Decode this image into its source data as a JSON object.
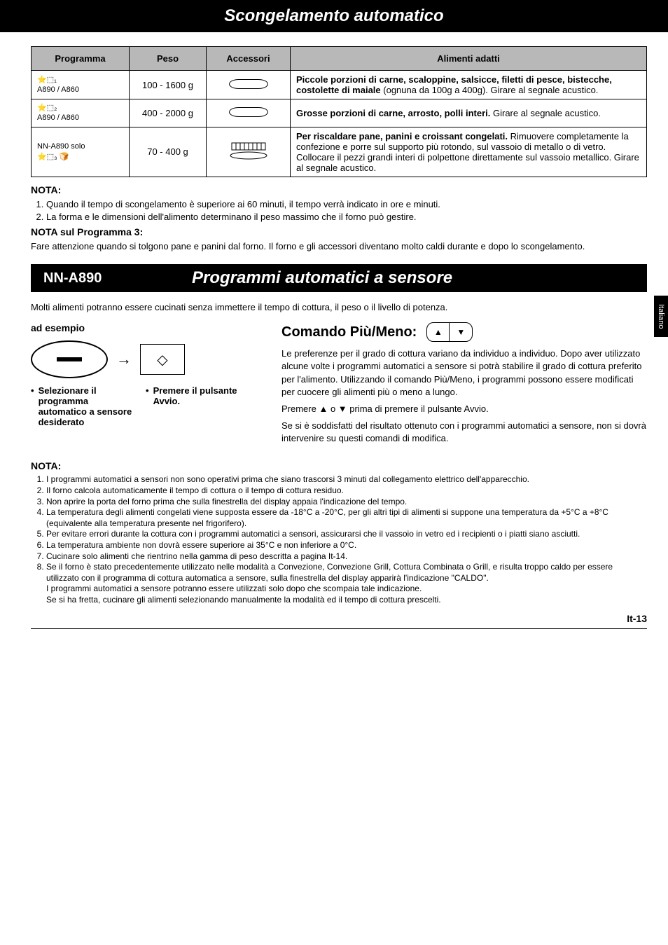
{
  "header_title": "Scongelamento automatico",
  "side_tab": "Italiano",
  "table": {
    "headers": [
      "Programma",
      "Peso",
      "Accessori",
      "Alimenti adatti"
    ],
    "rows": [
      {
        "prog_code": "⭐⬚₁",
        "prog_models": "A890 / A860",
        "peso": "100 - 1600 g",
        "alim_bold": "Piccole porzioni di carne, scaloppine, salsicce, filetti di pesce, bistecche, costolette di maiale",
        "alim_rest": " (ognuna da 100g a 400g). Girare al segnale acustico."
      },
      {
        "prog_code": "⭐⬚₂",
        "prog_models": "A890 / A860",
        "peso": "400 - 2000 g",
        "alim_bold": "Grosse porzioni di carne, arrosto, polli interi.",
        "alim_rest": " Girare al segnale acustico."
      },
      {
        "prog_code": "NN-A890 solo",
        "prog_models": "⭐⬚₃  🍞",
        "peso": "70 - 400 g",
        "alim_bold": "Per riscaldare pane, panini e croissant congelati.",
        "alim_rest": " Rimuovere completamente la confezione e porre sul supporto più rotondo, sul vassoio di metallo o di vetro. Collocare il pezzi grandi interi di polpettone direttamente sul vassoio metallico. Girare al segnale acustico."
      }
    ]
  },
  "nota1": {
    "head": "NOTA:",
    "items": [
      "Quando il tempo di scongelamento è superiore ai 60 minuti, il tempo verrà indicato in ore e minuti.",
      "La forma e le dimensioni dell'alimento determinano il peso massimo che il forno può gestire."
    ],
    "sub_head": "NOTA sul Programma 3:",
    "sub_text": "Fare attenzione quando si tolgono pane e panini dal forno. Il forno e gli accessori diventano molto caldi durante e dopo lo scongelamento."
  },
  "section2": {
    "model": "NN-A890",
    "title": "Programmi automatici a sensore"
  },
  "intro2": "Molti alimenti potranno essere cucinati senza immettere il tempo di cottura, il peso o il livello di potenza.",
  "example": {
    "head": "ad esempio",
    "cap1": "Selezionare il programma automatico a sensore desiderato",
    "cap2": "Premere il pulsante Avvio."
  },
  "cmd": {
    "head": "Comando Più/Meno:",
    "p1": "Le preferenze per il grado di cottura variano da individuo a individuo. Dopo aver utilizzato alcune volte i programmi automatici a sensore si potrà stabilire il grado di cottura preferito per l'alimento. Utilizzando il comando Più/Meno, i programmi possono essere modificati per cuocere gli alimenti più o meno a lungo.",
    "p2": "Premere ▲ o ▼ prima di premere il pulsante Avvio.",
    "p3": "Se si è soddisfatti del risultato ottenuto con i programmi automatici a sensore, non si dovrà intervenire su questi comandi di modifica."
  },
  "nota2": {
    "head": "NOTA:",
    "items": [
      "I programmi automatici a sensori non sono operativi prima che siano trascorsi 3 minuti dal collegamento elettrico dell'apparecchio.",
      "Il forno calcola automaticamente il tempo di cottura o il tempo di cottura residuo.",
      "Non aprire la porta del forno prima che sulla finestrella del display appaia l'indicazione del tempo.",
      "La temperatura degli alimenti congelati viene supposta essere da -18°C a -20°C, per gli altri tipi di alimenti si suppone una temperatura da +5°C a +8°C (equivalente alla temperatura presente nel frigorifero).",
      "Per evitare errori durante la cottura con i programmi automatici a sensori, assicurarsi che il vassoio in vetro ed i recipienti o i piatti siano asciutti.",
      "La temperatura ambiente non dovrà essere superiore ai 35°C e non inferiore a 0°C.",
      "Cucinare solo alimenti che rientrino nella gamma di peso descritta a pagina It-14.",
      "Se il forno è stato precedentemente utilizzato nelle modalità a Convezione, Convezione Grill, Cottura Combinata o Grill, e risulta troppo caldo per essere utilizzato con il programma di cottura automatica a sensore, sulla finestrella del display apparirà l'indicazione \"CALDO\".\nI programmi automatici a sensore potranno essere utilizzati solo dopo che scompaia tale indicazione.\nSe si ha fretta, cucinare gli alimenti selezionando manualmente la modalità ed il tempo di cottura prescelti."
    ]
  },
  "page_num": "It-13"
}
